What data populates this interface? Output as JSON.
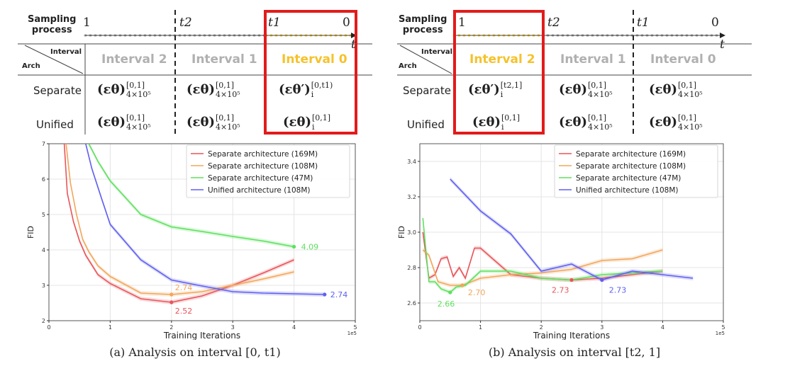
{
  "panels": [
    {
      "id": "a",
      "sampling_label_1": "Sampling",
      "sampling_label_2": "process",
      "timeline_labels": [
        "1",
        "t2",
        "t1",
        "0",
        "t"
      ],
      "corner_interval": "Interval",
      "corner_arch": "Arch",
      "interval_headers": [
        "Interval 2",
        "Interval 1",
        "Interval 0"
      ],
      "highlight": "Interval 0",
      "rows": [
        {
          "label": "Separate",
          "cells": [
            {
              "base": "(εθ)",
              "sup": "[0,1]",
              "sub": "4×10⁵"
            },
            {
              "base": "(εθ)",
              "sup": "[0,1]",
              "sub": "4×10⁵"
            },
            {
              "base": "(εθ′)",
              "sup": "[0,t1)",
              "sub": "i"
            }
          ]
        },
        {
          "label": "Unified",
          "cells": [
            {
              "base": "(εθ)",
              "sup": "[0,1]",
              "sub": "4×10⁵"
            },
            {
              "base": "(εθ)",
              "sup": "[0,1]",
              "sub": "4×10⁵"
            },
            {
              "base": "(εθ)",
              "sup": "[0,1]",
              "sub": "i"
            }
          ]
        }
      ],
      "caption": "(a) Analysis on interval [0, t1)"
    },
    {
      "id": "b",
      "sampling_label_1": "Sampling",
      "sampling_label_2": "process",
      "timeline_labels": [
        "1",
        "t2",
        "t1",
        "0",
        "t"
      ],
      "corner_interval": "Interval",
      "corner_arch": "Arch",
      "interval_headers": [
        "Interval 2",
        "Interval 1",
        "Interval 0"
      ],
      "highlight": "Interval 2",
      "rows": [
        {
          "label": "Separate",
          "cells": [
            {
              "base": "(εθ′)",
              "sup": "[t2,1]",
              "sub": "i"
            },
            {
              "base": "(εθ)",
              "sup": "[0,1]",
              "sub": "4×10⁵"
            },
            {
              "base": "(εθ)",
              "sup": "[0,1]",
              "sub": "4×10⁵"
            }
          ]
        },
        {
          "label": "Unified",
          "cells": [
            {
              "base": "(εθ)",
              "sup": "[0,1]",
              "sub": "i"
            },
            {
              "base": "(εθ)",
              "sup": "[0,1]",
              "sub": "4×10⁵"
            },
            {
              "base": "(εθ)",
              "sup": "[0,1]",
              "sub": "4×10⁵"
            }
          ]
        }
      ],
      "caption": "(b) Analysis on interval [t2, 1]"
    }
  ],
  "chart_data": [
    {
      "type": "line",
      "xlabel": "Training Iterations",
      "ylabel": "FID",
      "x_multiplier": "1e5",
      "xlim": [
        0,
        5
      ],
      "ylim": [
        2,
        7
      ],
      "xticks": [
        0,
        1,
        2,
        3,
        4,
        5
      ],
      "yticks": [
        2,
        3,
        4,
        5,
        6,
        7
      ],
      "ytick_labels": [
        "2",
        "3",
        "4",
        "5",
        "6",
        "7"
      ],
      "legend_position": "top-right",
      "grid": true,
      "series": [
        {
          "name": "Separate architecture (169M)",
          "color": "#e8555a",
          "x": [
            0.25,
            0.3,
            0.4,
            0.5,
            0.6,
            0.8,
            1.0,
            1.5,
            2.0,
            2.5,
            3.0,
            3.5,
            4.0
          ],
          "y": [
            7.0,
            5.6,
            4.8,
            4.25,
            3.85,
            3.3,
            3.05,
            2.62,
            2.52,
            2.7,
            3.0,
            3.35,
            3.72
          ]
        },
        {
          "name": "Separate architecture (108M)",
          "color": "#f2a65a",
          "x": [
            0.28,
            0.35,
            0.45,
            0.55,
            0.65,
            0.8,
            1.0,
            1.5,
            2.0,
            2.5,
            3.0,
            3.5,
            4.0
          ],
          "y": [
            7.0,
            5.9,
            5.0,
            4.3,
            3.95,
            3.55,
            3.25,
            2.78,
            2.74,
            2.82,
            3.0,
            3.18,
            3.38
          ]
        },
        {
          "name": "Separate architecture (47M)",
          "color": "#5ee05e",
          "x": [
            0.65,
            0.8,
            1.0,
            1.5,
            2.0,
            2.5,
            3.0,
            3.5,
            4.0
          ],
          "y": [
            7.0,
            6.5,
            5.95,
            5.0,
            4.65,
            4.52,
            4.38,
            4.25,
            4.09
          ]
        },
        {
          "name": "Unified architecture (108M)",
          "color": "#6060f0",
          "x": [
            0.6,
            0.7,
            0.85,
            1.0,
            1.5,
            2.0,
            2.5,
            3.0,
            3.5,
            4.0,
            4.5
          ],
          "y": [
            7.0,
            6.3,
            5.5,
            4.72,
            3.72,
            3.15,
            2.98,
            2.82,
            2.78,
            2.76,
            2.74
          ]
        }
      ],
      "annotations": [
        {
          "text": "2.52",
          "x": 2.0,
          "y": 2.52,
          "color": "#e8555a"
        },
        {
          "text": "2.74",
          "x": 2.0,
          "y": 2.74,
          "color": "#f2a65a"
        },
        {
          "text": "4.09",
          "x": 4.0,
          "y": 4.09,
          "color": "#5ee05e"
        },
        {
          "text": "2.74",
          "x": 4.5,
          "y": 2.74,
          "color": "#6060f0"
        }
      ]
    },
    {
      "type": "line",
      "xlabel": "Training Iterations",
      "ylabel": "FID",
      "x_multiplier": "1e5",
      "xlim": [
        0,
        5
      ],
      "ylim": [
        2.5,
        3.5
      ],
      "xticks": [
        0,
        1,
        2,
        3,
        4,
        5
      ],
      "yticks": [
        2.6,
        2.8,
        3.0,
        3.2,
        3.4
      ],
      "ytick_labels": [
        "2.6",
        "2.8",
        "3.0",
        "3.2",
        "3.4"
      ],
      "legend_position": "top-right",
      "grid": true,
      "series": [
        {
          "name": "Separate architecture (169M)",
          "color": "#e8555a",
          "x": [
            0.05,
            0.15,
            0.25,
            0.35,
            0.45,
            0.55,
            0.65,
            0.75,
            0.9,
            1.0,
            1.5,
            2.0,
            2.5,
            3.0,
            3.5,
            4.0
          ],
          "y": [
            3.0,
            2.74,
            2.76,
            2.85,
            2.86,
            2.75,
            2.8,
            2.74,
            2.91,
            2.91,
            2.76,
            2.74,
            2.73,
            2.74,
            2.76,
            2.78
          ]
        },
        {
          "name": "Separate architecture (108M)",
          "color": "#f2a65a",
          "x": [
            0.05,
            0.15,
            0.3,
            0.5,
            0.7,
            1.0,
            1.5,
            2.0,
            2.5,
            3.0,
            3.5,
            4.0
          ],
          "y": [
            2.9,
            2.87,
            2.72,
            2.7,
            2.7,
            2.74,
            2.76,
            2.77,
            2.79,
            2.84,
            2.85,
            2.9
          ]
        },
        {
          "name": "Separate architecture (47M)",
          "color": "#5ee05e",
          "x": [
            0.05,
            0.15,
            0.25,
            0.35,
            0.5,
            0.6,
            0.75,
            1.0,
            1.5,
            2.0,
            2.5,
            3.0,
            3.5,
            4.0
          ],
          "y": [
            3.08,
            2.72,
            2.72,
            2.68,
            2.66,
            2.69,
            2.7,
            2.78,
            2.78,
            2.74,
            2.73,
            2.76,
            2.77,
            2.78
          ]
        },
        {
          "name": "Unified architecture (108M)",
          "color": "#6060f0",
          "x": [
            0.5,
            1.0,
            1.5,
            2.0,
            2.5,
            3.0,
            3.5,
            4.0,
            4.5
          ],
          "y": [
            3.3,
            3.12,
            2.99,
            2.78,
            2.82,
            2.73,
            2.78,
            2.76,
            2.74
          ]
        }
      ],
      "annotations": [
        {
          "text": "2.66",
          "x": 0.5,
          "y": 2.66,
          "color": "#5ee05e"
        },
        {
          "text": "2.70",
          "x": 0.7,
          "y": 2.7,
          "color": "#f2a65a"
        },
        {
          "text": "2.73",
          "x": 2.5,
          "y": 2.73,
          "color": "#e8555a"
        },
        {
          "text": "2.73",
          "x": 3.0,
          "y": 2.73,
          "color": "#6060f0"
        }
      ]
    }
  ]
}
